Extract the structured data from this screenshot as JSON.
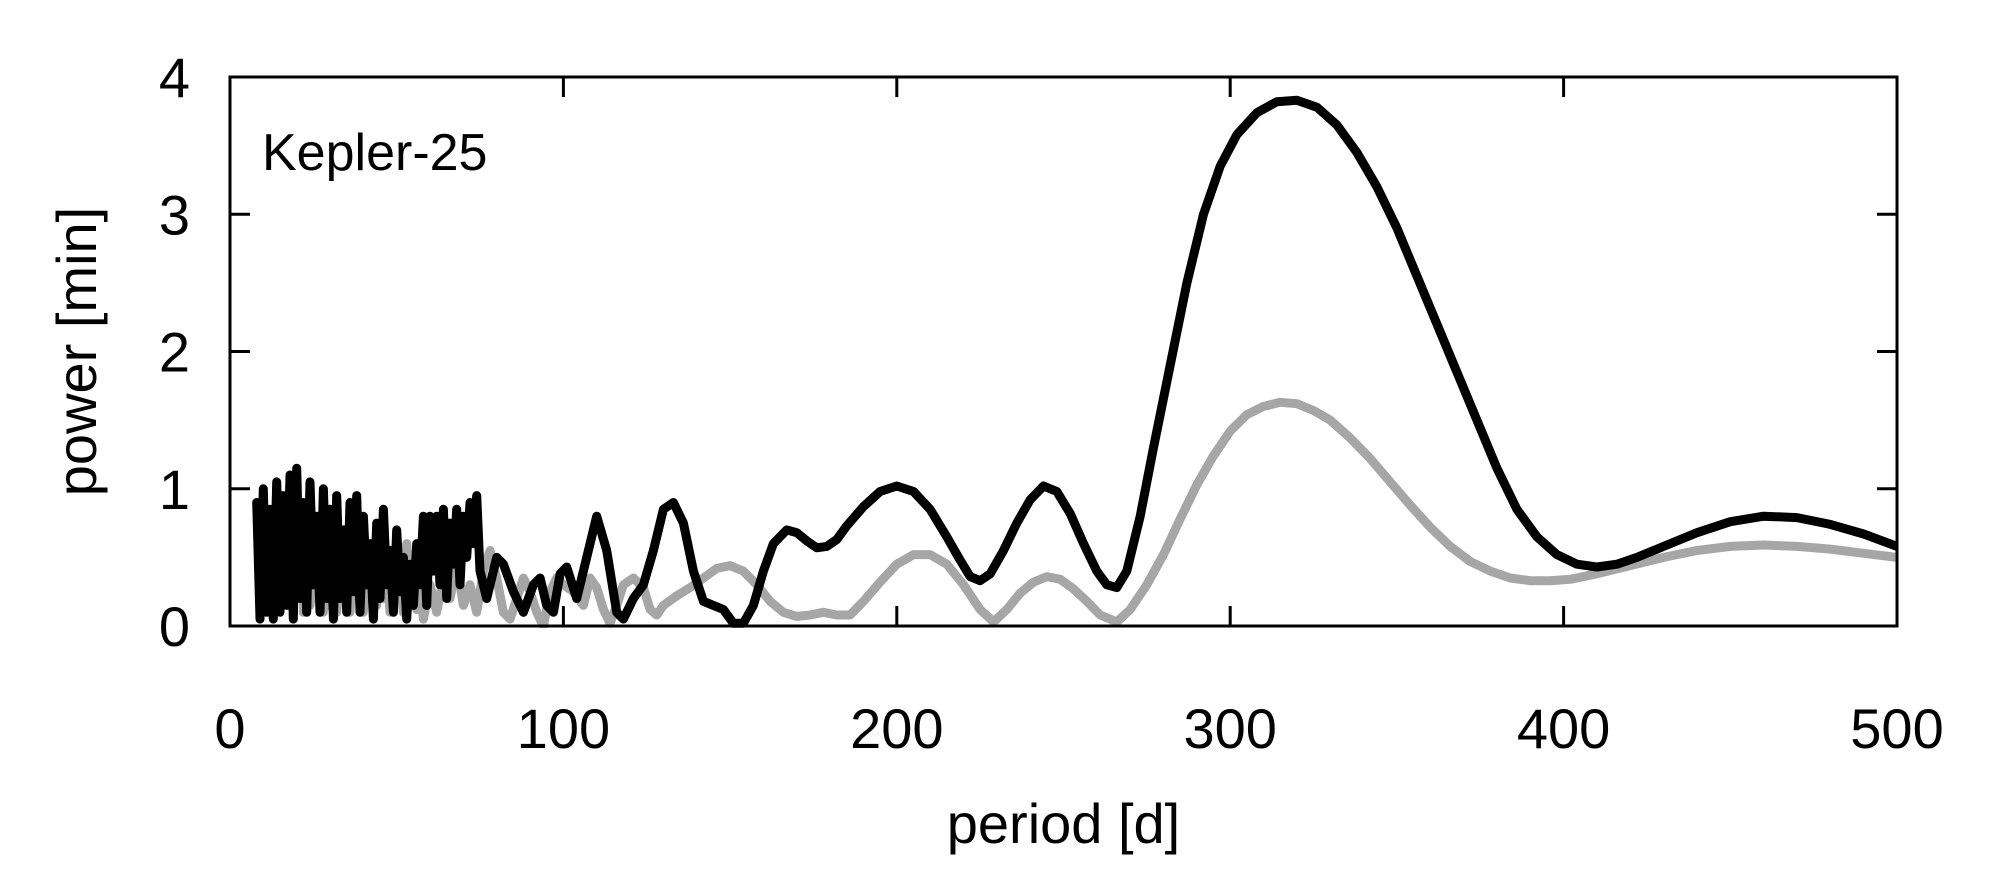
{
  "chart_data": {
    "type": "line",
    "xlabel": "period [d]",
    "ylabel": "power [min]",
    "annotation": "Kepler-25",
    "xlim": [
      0,
      500
    ],
    "ylim": [
      0,
      4
    ],
    "xticks": [
      0,
      100,
      200,
      300,
      400,
      500
    ],
    "yticks": [
      0,
      1,
      2,
      3,
      4
    ],
    "grid": false,
    "series": [
      {
        "color": "#000000",
        "points": [
          [
            8,
            0.9
          ],
          [
            9,
            0.05
          ],
          [
            10,
            1.0
          ],
          [
            11,
            0.1
          ],
          [
            12,
            0.85
          ],
          [
            13,
            0.05
          ],
          [
            14,
            1.05
          ],
          [
            15,
            0.1
          ],
          [
            16,
            0.95
          ],
          [
            17,
            0.15
          ],
          [
            18,
            1.1
          ],
          [
            19,
            0.05
          ],
          [
            20,
            1.15
          ],
          [
            21,
            0.2
          ],
          [
            22,
            0.9
          ],
          [
            23,
            0.1
          ],
          [
            24,
            1.05
          ],
          [
            25,
            0.3
          ],
          [
            26,
            0.8
          ],
          [
            27,
            0.1
          ],
          [
            28,
            1.0
          ],
          [
            29,
            0.2
          ],
          [
            30,
            0.85
          ],
          [
            31,
            0.05
          ],
          [
            32,
            0.95
          ],
          [
            33,
            0.2
          ],
          [
            34,
            0.7
          ],
          [
            35,
            0.1
          ],
          [
            36,
            0.9
          ],
          [
            37,
            0.25
          ],
          [
            38,
            0.95
          ],
          [
            39,
            0.1
          ],
          [
            40,
            0.8
          ],
          [
            41,
            0.3
          ],
          [
            42,
            0.6
          ],
          [
            43,
            0.05
          ],
          [
            44,
            0.75
          ],
          [
            45,
            0.2
          ],
          [
            46,
            0.85
          ],
          [
            47,
            0.3
          ],
          [
            48,
            0.55
          ],
          [
            49,
            0.1
          ],
          [
            50,
            0.7
          ],
          [
            51,
            0.25
          ],
          [
            52,
            0.5
          ],
          [
            53,
            0.05
          ],
          [
            54,
            0.45
          ],
          [
            55,
            0.15
          ],
          [
            56,
            0.6
          ],
          [
            57,
            0.3
          ],
          [
            58,
            0.8
          ],
          [
            59,
            0.15
          ],
          [
            60,
            0.8
          ],
          [
            61,
            0.4
          ],
          [
            62,
            0.8
          ],
          [
            63,
            0.3
          ],
          [
            64,
            0.85
          ],
          [
            65,
            0.2
          ],
          [
            66,
            0.75
          ],
          [
            67,
            0.45
          ],
          [
            68,
            0.85
          ],
          [
            69,
            0.3
          ],
          [
            70,
            0.8
          ],
          [
            71,
            0.5
          ],
          [
            72,
            0.9
          ],
          [
            73,
            0.6
          ],
          [
            74,
            0.95
          ],
          [
            75,
            0.4
          ],
          [
            77,
            0.2
          ],
          [
            80,
            0.5
          ],
          [
            82,
            0.45
          ],
          [
            85,
            0.25
          ],
          [
            88,
            0.1
          ],
          [
            91,
            0.3
          ],
          [
            93,
            0.35
          ],
          [
            95,
            0.15
          ],
          [
            97,
            0.1
          ],
          [
            99,
            0.38
          ],
          [
            101,
            0.43
          ],
          [
            104,
            0.2
          ],
          [
            107,
            0.5
          ],
          [
            110,
            0.8
          ],
          [
            113,
            0.55
          ],
          [
            116,
            0.1
          ],
          [
            118,
            0.05
          ],
          [
            121,
            0.2
          ],
          [
            124,
            0.3
          ],
          [
            127,
            0.55
          ],
          [
            130,
            0.85
          ],
          [
            133,
            0.9
          ],
          [
            136,
            0.75
          ],
          [
            139,
            0.4
          ],
          [
            142,
            0.18
          ],
          [
            145,
            0.15
          ],
          [
            148,
            0.12
          ],
          [
            151,
            0.02
          ],
          [
            154,
            0.02
          ],
          [
            157,
            0.15
          ],
          [
            160,
            0.4
          ],
          [
            163,
            0.6
          ],
          [
            167,
            0.7
          ],
          [
            170,
            0.68
          ],
          [
            173,
            0.62
          ],
          [
            176,
            0.57
          ],
          [
            179,
            0.58
          ],
          [
            182,
            0.63
          ],
          [
            185,
            0.73
          ],
          [
            190,
            0.87
          ],
          [
            195,
            0.98
          ],
          [
            200,
            1.02
          ],
          [
            205,
            0.98
          ],
          [
            210,
            0.85
          ],
          [
            215,
            0.65
          ],
          [
            219,
            0.48
          ],
          [
            222,
            0.36
          ],
          [
            225,
            0.33
          ],
          [
            228,
            0.38
          ],
          [
            232,
            0.55
          ],
          [
            236,
            0.75
          ],
          [
            240,
            0.92
          ],
          [
            244,
            1.02
          ],
          [
            248,
            0.98
          ],
          [
            252,
            0.82
          ],
          [
            256,
            0.6
          ],
          [
            260,
            0.4
          ],
          [
            263,
            0.3
          ],
          [
            266,
            0.28
          ],
          [
            269,
            0.4
          ],
          [
            273,
            0.8
          ],
          [
            277,
            1.3
          ],
          [
            282,
            1.9
          ],
          [
            287,
            2.5
          ],
          [
            292,
            3.0
          ],
          [
            297,
            3.35
          ],
          [
            302,
            3.58
          ],
          [
            308,
            3.74
          ],
          [
            314,
            3.82
          ],
          [
            320,
            3.83
          ],
          [
            326,
            3.78
          ],
          [
            332,
            3.65
          ],
          [
            338,
            3.45
          ],
          [
            344,
            3.2
          ],
          [
            350,
            2.9
          ],
          [
            356,
            2.55
          ],
          [
            362,
            2.2
          ],
          [
            368,
            1.85
          ],
          [
            374,
            1.5
          ],
          [
            380,
            1.15
          ],
          [
            386,
            0.85
          ],
          [
            392,
            0.65
          ],
          [
            398,
            0.52
          ],
          [
            404,
            0.45
          ],
          [
            410,
            0.43
          ],
          [
            416,
            0.45
          ],
          [
            422,
            0.5
          ],
          [
            430,
            0.58
          ],
          [
            440,
            0.68
          ],
          [
            450,
            0.76
          ],
          [
            460,
            0.8
          ],
          [
            470,
            0.79
          ],
          [
            480,
            0.74
          ],
          [
            490,
            0.67
          ],
          [
            500,
            0.58
          ]
        ]
      },
      {
        "color": "#a6a6a6",
        "points": [
          [
            22,
            0.1
          ],
          [
            23,
            0.65
          ],
          [
            24,
            0.15
          ],
          [
            25,
            0.6
          ],
          [
            26,
            0.2
          ],
          [
            27,
            0.55
          ],
          [
            28,
            0.1
          ],
          [
            29,
            0.5
          ],
          [
            30,
            0.15
          ],
          [
            31,
            0.45
          ],
          [
            32,
            0.1
          ],
          [
            33,
            0.55
          ],
          [
            34,
            0.2
          ],
          [
            35,
            0.45
          ],
          [
            36,
            0.1
          ],
          [
            37,
            0.5
          ],
          [
            38,
            0.2
          ],
          [
            39,
            0.55
          ],
          [
            40,
            0.1
          ],
          [
            41,
            0.6
          ],
          [
            42,
            0.25
          ],
          [
            43,
            0.45
          ],
          [
            44,
            0.15
          ],
          [
            45,
            0.55
          ],
          [
            46,
            0.2
          ],
          [
            47,
            0.4
          ],
          [
            48,
            0.1
          ],
          [
            49,
            0.5
          ],
          [
            50,
            0.2
          ],
          [
            51,
            0.45
          ],
          [
            52,
            0.1
          ],
          [
            53,
            0.6
          ],
          [
            54,
            0.25
          ],
          [
            55,
            0.35
          ],
          [
            56,
            0.12
          ],
          [
            57,
            0.3
          ],
          [
            58,
            0.05
          ],
          [
            60,
            0.3
          ],
          [
            62,
            0.1
          ],
          [
            64,
            0.35
          ],
          [
            66,
            0.2
          ],
          [
            68,
            0.45
          ],
          [
            70,
            0.15
          ],
          [
            72,
            0.3
          ],
          [
            74,
            0.1
          ],
          [
            76,
            0.4
          ],
          [
            78,
            0.55
          ],
          [
            80,
            0.35
          ],
          [
            82,
            0.1
          ],
          [
            84,
            0.05
          ],
          [
            86,
            0.2
          ],
          [
            88,
            0.35
          ],
          [
            90,
            0.25
          ],
          [
            92,
            0.1
          ],
          [
            94,
            0.0
          ],
          [
            96,
            0.25
          ],
          [
            98,
            0.35
          ],
          [
            100,
            0.3
          ],
          [
            103,
            0.25
          ],
          [
            106,
            0.15
          ],
          [
            108,
            0.35
          ],
          [
            110,
            0.28
          ],
          [
            112,
            0.12
          ],
          [
            114,
            0.02
          ],
          [
            116,
            0.15
          ],
          [
            118,
            0.3
          ],
          [
            121,
            0.35
          ],
          [
            124,
            0.28
          ],
          [
            126,
            0.12
          ],
          [
            128,
            0.08
          ],
          [
            130,
            0.15
          ],
          [
            134,
            0.22
          ],
          [
            138,
            0.28
          ],
          [
            142,
            0.35
          ],
          [
            146,
            0.42
          ],
          [
            150,
            0.44
          ],
          [
            154,
            0.4
          ],
          [
            158,
            0.3
          ],
          [
            162,
            0.18
          ],
          [
            166,
            0.1
          ],
          [
            170,
            0.07
          ],
          [
            174,
            0.08
          ],
          [
            178,
            0.1
          ],
          [
            182,
            0.08
          ],
          [
            186,
            0.08
          ],
          [
            190,
            0.18
          ],
          [
            195,
            0.32
          ],
          [
            200,
            0.45
          ],
          [
            205,
            0.52
          ],
          [
            210,
            0.52
          ],
          [
            215,
            0.45
          ],
          [
            220,
            0.3
          ],
          [
            225,
            0.12
          ],
          [
            229,
            0.03
          ],
          [
            233,
            0.12
          ],
          [
            237,
            0.24
          ],
          [
            241,
            0.32
          ],
          [
            245,
            0.36
          ],
          [
            249,
            0.34
          ],
          [
            253,
            0.27
          ],
          [
            257,
            0.18
          ],
          [
            261,
            0.08
          ],
          [
            266,
            0.03
          ],
          [
            270,
            0.12
          ],
          [
            275,
            0.3
          ],
          [
            280,
            0.52
          ],
          [
            285,
            0.78
          ],
          [
            290,
            1.03
          ],
          [
            295,
            1.24
          ],
          [
            300,
            1.42
          ],
          [
            305,
            1.54
          ],
          [
            310,
            1.6
          ],
          [
            315,
            1.63
          ],
          [
            320,
            1.62
          ],
          [
            325,
            1.57
          ],
          [
            330,
            1.5
          ],
          [
            336,
            1.37
          ],
          [
            342,
            1.22
          ],
          [
            348,
            1.05
          ],
          [
            354,
            0.88
          ],
          [
            360,
            0.72
          ],
          [
            366,
            0.58
          ],
          [
            372,
            0.47
          ],
          [
            378,
            0.4
          ],
          [
            384,
            0.35
          ],
          [
            390,
            0.33
          ],
          [
            396,
            0.33
          ],
          [
            402,
            0.34
          ],
          [
            410,
            0.38
          ],
          [
            420,
            0.44
          ],
          [
            430,
            0.5
          ],
          [
            440,
            0.55
          ],
          [
            450,
            0.58
          ],
          [
            460,
            0.59
          ],
          [
            470,
            0.58
          ],
          [
            480,
            0.56
          ],
          [
            490,
            0.53
          ],
          [
            500,
            0.5
          ]
        ]
      }
    ]
  }
}
